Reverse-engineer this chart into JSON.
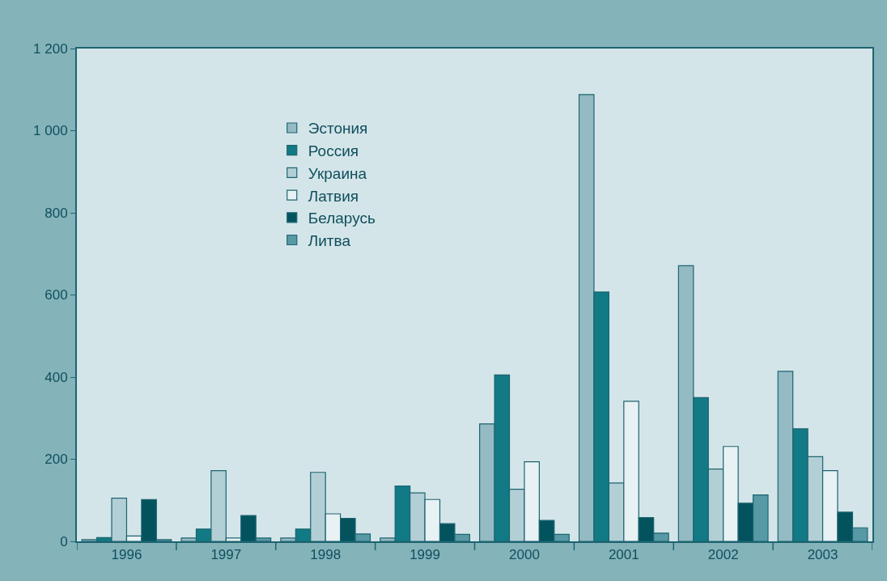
{
  "chart_data": {
    "type": "bar",
    "categories": [
      "1996",
      "1997",
      "1998",
      "1999",
      "2000",
      "2001",
      "2002",
      "2003"
    ],
    "series": [
      {
        "name": "Эстония",
        "color": "#94bac3",
        "values": [
          4,
          8,
          8,
          8,
          286,
          1088,
          671,
          414
        ]
      },
      {
        "name": "Россия",
        "color": "#117a84",
        "values": [
          9,
          30,
          30,
          135,
          405,
          607,
          350,
          274
        ]
      },
      {
        "name": "Украина",
        "color": "#b3cfd6",
        "values": [
          105,
          172,
          168,
          118,
          127,
          142,
          176,
          206
        ]
      },
      {
        "name": "Латвия",
        "color": "#e8f1f3",
        "values": [
          13,
          8,
          67,
          102,
          194,
          341,
          231,
          172
        ]
      },
      {
        "name": "Беларусь",
        "color": "#02535e",
        "values": [
          102,
          63,
          56,
          43,
          51,
          58,
          93,
          71
        ]
      },
      {
        "name": "Литва",
        "color": "#5799a5",
        "values": [
          4,
          8,
          18,
          17,
          17,
          20,
          113,
          33
        ]
      }
    ],
    "ylim": [
      0,
      1200
    ],
    "yticks": [
      0,
      200,
      400,
      600,
      800,
      {
        "value": 1000,
        "label": "1 000"
      },
      {
        "value": 1200,
        "label": "1 200"
      }
    ],
    "grid": false,
    "legend": "top left"
  }
}
